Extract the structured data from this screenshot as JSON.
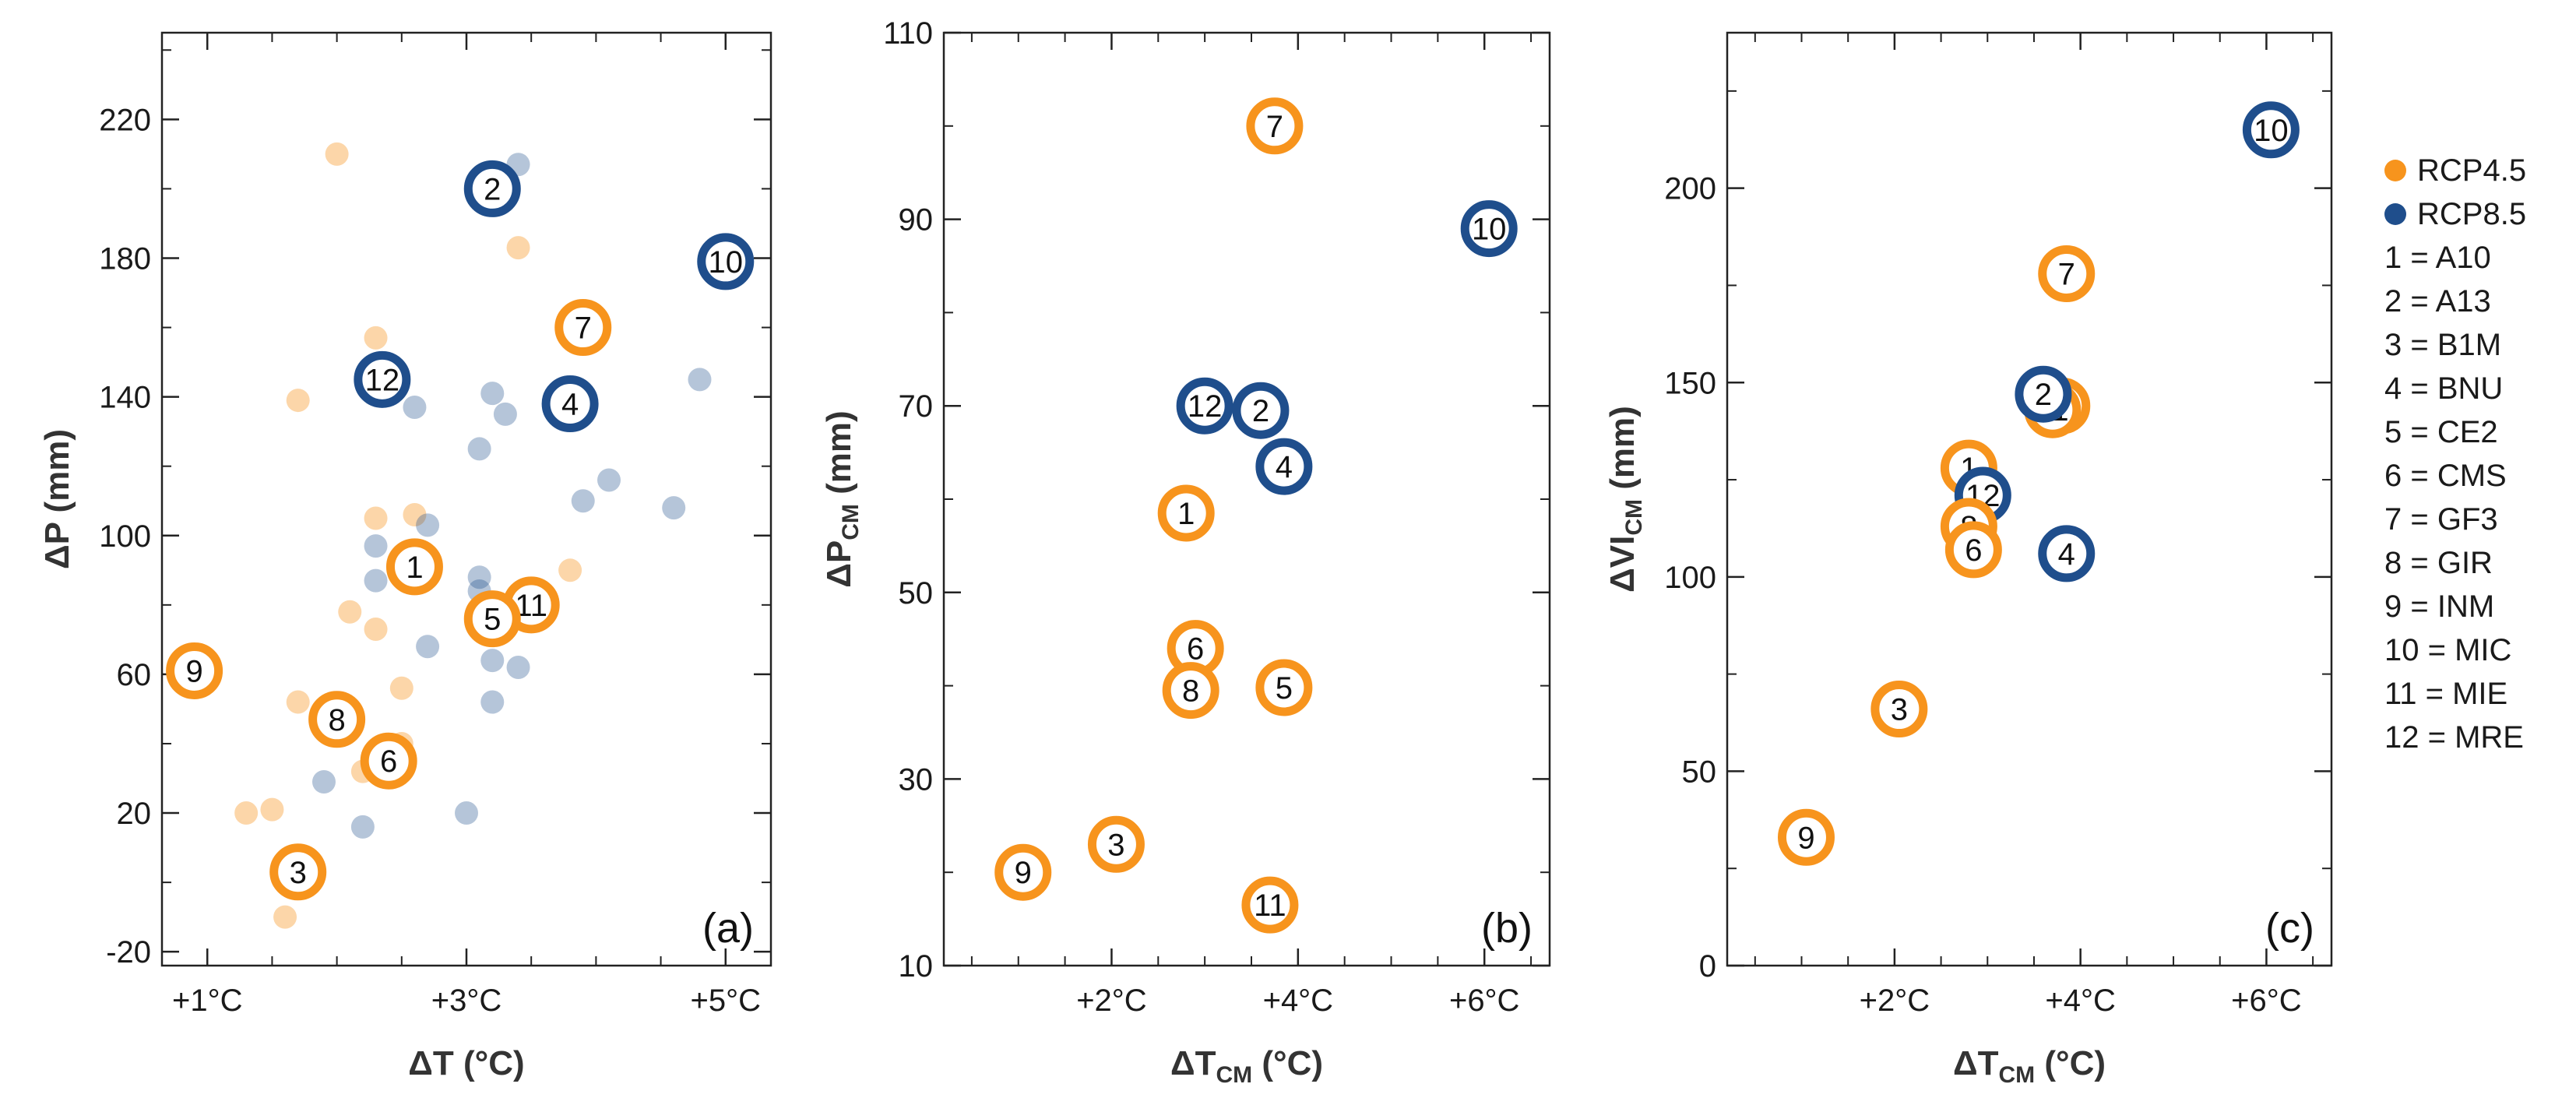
{
  "legend": {
    "series": [
      {
        "name": "RCP4.5",
        "color": "#f7941d"
      },
      {
        "name": "RCP8.5",
        "color": "#1f4e8c"
      }
    ],
    "models": [
      "1 = A10",
      "2 = A13",
      "3 = B1M",
      "4 = BNU",
      "5 = CE2",
      "6 = CMS",
      "7 = GF3",
      "8 = GIR",
      "9 = INM",
      "10 = MIC",
      "11 = MIE",
      "12 = MRE"
    ]
  },
  "chart_data": [
    {
      "type": "scatter",
      "panel": "(a)",
      "xlabel": "ΔT (°C)",
      "ylabel": "ΔP (mm)",
      "xlim": [
        0.65,
        5.35
      ],
      "ylim": [
        -24,
        245
      ],
      "xticks": [
        {
          "v": 1,
          "label": "+1°C"
        },
        {
          "v": 3,
          "label": "+3°C"
        },
        {
          "v": 5,
          "label": "+5°C"
        }
      ],
      "yticks": [
        {
          "v": -20,
          "label": "-20"
        },
        {
          "v": 20,
          "label": "20"
        },
        {
          "v": 60,
          "label": "60"
        },
        {
          "v": 100,
          "label": "100"
        },
        {
          "v": 140,
          "label": "140"
        },
        {
          "v": 180,
          "label": "180"
        },
        {
          "v": 220,
          "label": "220"
        }
      ],
      "faded_points": {
        "RCP4.5": [
          [
            2.0,
            210
          ],
          [
            2.3,
            157
          ],
          [
            3.4,
            183
          ],
          [
            1.7,
            139
          ],
          [
            2.3,
            105
          ],
          [
            2.6,
            106
          ],
          [
            3.8,
            90
          ],
          [
            2.1,
            78
          ],
          [
            2.3,
            73
          ],
          [
            2.5,
            56
          ],
          [
            1.7,
            52
          ],
          [
            2.2,
            32
          ],
          [
            2.5,
            40
          ],
          [
            1.5,
            21
          ],
          [
            1.3,
            20
          ],
          [
            1.6,
            -10
          ]
        ],
        "RCP8.5": [
          [
            3.4,
            207
          ],
          [
            2.6,
            137
          ],
          [
            3.2,
            141
          ],
          [
            3.3,
            135
          ],
          [
            3.1,
            125
          ],
          [
            3.9,
            110
          ],
          [
            4.1,
            116
          ],
          [
            4.6,
            108
          ],
          [
            4.8,
            145
          ],
          [
            2.3,
            97
          ],
          [
            2.7,
            103
          ],
          [
            2.3,
            87
          ],
          [
            3.1,
            88
          ],
          [
            3.1,
            84
          ],
          [
            2.7,
            68
          ],
          [
            3.2,
            64
          ],
          [
            3.4,
            62
          ],
          [
            3.2,
            52
          ],
          [
            1.9,
            29
          ],
          [
            2.2,
            16
          ],
          [
            3.0,
            20
          ]
        ]
      },
      "labeled_points": [
        {
          "id": "2",
          "series": "RCP8.5",
          "x": 3.2,
          "y": 200
        },
        {
          "id": "10",
          "series": "RCP8.5",
          "x": 5.0,
          "y": 179
        },
        {
          "id": "7",
          "series": "RCP4.5",
          "x": 3.9,
          "y": 160
        },
        {
          "id": "12",
          "series": "RCP8.5",
          "x": 2.35,
          "y": 145
        },
        {
          "id": "4",
          "series": "RCP8.5",
          "x": 3.8,
          "y": 138
        },
        {
          "id": "1",
          "series": "RCP4.5",
          "x": 2.6,
          "y": 91
        },
        {
          "id": "11",
          "series": "RCP4.5",
          "x": 3.5,
          "y": 80
        },
        {
          "id": "5",
          "series": "RCP4.5",
          "x": 3.2,
          "y": 76
        },
        {
          "id": "9",
          "series": "RCP4.5",
          "x": 0.9,
          "y": 61
        },
        {
          "id": "8",
          "series": "RCP4.5",
          "x": 2.0,
          "y": 47
        },
        {
          "id": "6",
          "series": "RCP4.5",
          "x": 2.4,
          "y": 35
        },
        {
          "id": "3",
          "series": "RCP4.5",
          "x": 1.7,
          "y": 3
        }
      ]
    },
    {
      "type": "scatter",
      "panel": "(b)",
      "xlabel": "ΔT",
      "xlabel_sub": "CM",
      "xlabel_suffix": " (°C)",
      "ylabel": "ΔP",
      "ylabel_sub": "CM",
      "ylabel_suffix": " (mm)",
      "xlim": [
        0.2,
        6.7
      ],
      "ylim": [
        10,
        110
      ],
      "xticks": [
        {
          "v": 2,
          "label": "+2°C"
        },
        {
          "v": 4,
          "label": "+4°C"
        },
        {
          "v": 6,
          "label": "+6°C"
        }
      ],
      "yticks": [
        {
          "v": 10,
          "label": "10"
        },
        {
          "v": 30,
          "label": "30"
        },
        {
          "v": 50,
          "label": "50"
        },
        {
          "v": 70,
          "label": "70"
        },
        {
          "v": 90,
          "label": "90"
        },
        {
          "v": 110,
          "label": "110"
        }
      ],
      "labeled_points": [
        {
          "id": "7",
          "series": "RCP4.5",
          "x": 3.75,
          "y": 100
        },
        {
          "id": "10",
          "series": "RCP8.5",
          "x": 6.05,
          "y": 89
        },
        {
          "id": "12",
          "series": "RCP8.5",
          "x": 3.0,
          "y": 70
        },
        {
          "id": "2",
          "series": "RCP8.5",
          "x": 3.6,
          "y": 69.5
        },
        {
          "id": "4",
          "series": "RCP8.5",
          "x": 3.85,
          "y": 63.5
        },
        {
          "id": "1",
          "series": "RCP4.5",
          "x": 2.8,
          "y": 58.5
        },
        {
          "id": "6",
          "series": "RCP4.5",
          "x": 2.9,
          "y": 44
        },
        {
          "id": "8",
          "series": "RCP4.5",
          "x": 2.85,
          "y": 39.5
        },
        {
          "id": "5",
          "series": "RCP4.5",
          "x": 3.85,
          "y": 39.8
        },
        {
          "id": "3",
          "series": "RCP4.5",
          "x": 2.05,
          "y": 23
        },
        {
          "id": "9",
          "series": "RCP4.5",
          "x": 1.05,
          "y": 20
        },
        {
          "id": "11",
          "series": "RCP4.5",
          "x": 3.7,
          "y": 16.5
        }
      ]
    },
    {
      "type": "scatter",
      "panel": "(c)",
      "xlabel": "ΔT",
      "xlabel_sub": "CM",
      "xlabel_suffix": " (°C)",
      "ylabel": "ΔVI",
      "ylabel_sub": "CM",
      "ylabel_suffix": " (mm)",
      "xlim": [
        0.2,
        6.7
      ],
      "ylim": [
        0,
        240
      ],
      "xticks": [
        {
          "v": 2,
          "label": "+2°C"
        },
        {
          "v": 4,
          "label": "+4°C"
        },
        {
          "v": 6,
          "label": "+6°C"
        }
      ],
      "yticks": [
        {
          "v": 0,
          "label": "0"
        },
        {
          "v": 50,
          "label": "50"
        },
        {
          "v": 100,
          "label": "100"
        },
        {
          "v": 150,
          "label": "150"
        },
        {
          "v": 200,
          "label": "200"
        }
      ],
      "labeled_points": [
        {
          "id": "10",
          "series": "RCP8.5",
          "x": 6.05,
          "y": 215
        },
        {
          "id": "7",
          "series": "RCP4.5",
          "x": 3.85,
          "y": 178
        },
        {
          "id": "5",
          "series": "RCP4.5",
          "x": 3.8,
          "y": 144
        },
        {
          "id": "11",
          "series": "RCP4.5",
          "x": 3.7,
          "y": 143
        },
        {
          "id": "2",
          "series": "RCP8.5",
          "x": 3.6,
          "y": 147
        },
        {
          "id": "1",
          "series": "RCP4.5",
          "x": 2.8,
          "y": 128
        },
        {
          "id": "12",
          "series": "RCP8.5",
          "x": 2.95,
          "y": 121
        },
        {
          "id": "8",
          "series": "RCP4.5",
          "x": 2.8,
          "y": 113
        },
        {
          "id": "6",
          "series": "RCP4.5",
          "x": 2.85,
          "y": 107
        },
        {
          "id": "4",
          "series": "RCP8.5",
          "x": 3.85,
          "y": 106
        },
        {
          "id": "3",
          "series": "RCP4.5",
          "x": 2.05,
          "y": 66
        },
        {
          "id": "9",
          "series": "RCP4.5",
          "x": 1.05,
          "y": 33
        }
      ]
    }
  ]
}
